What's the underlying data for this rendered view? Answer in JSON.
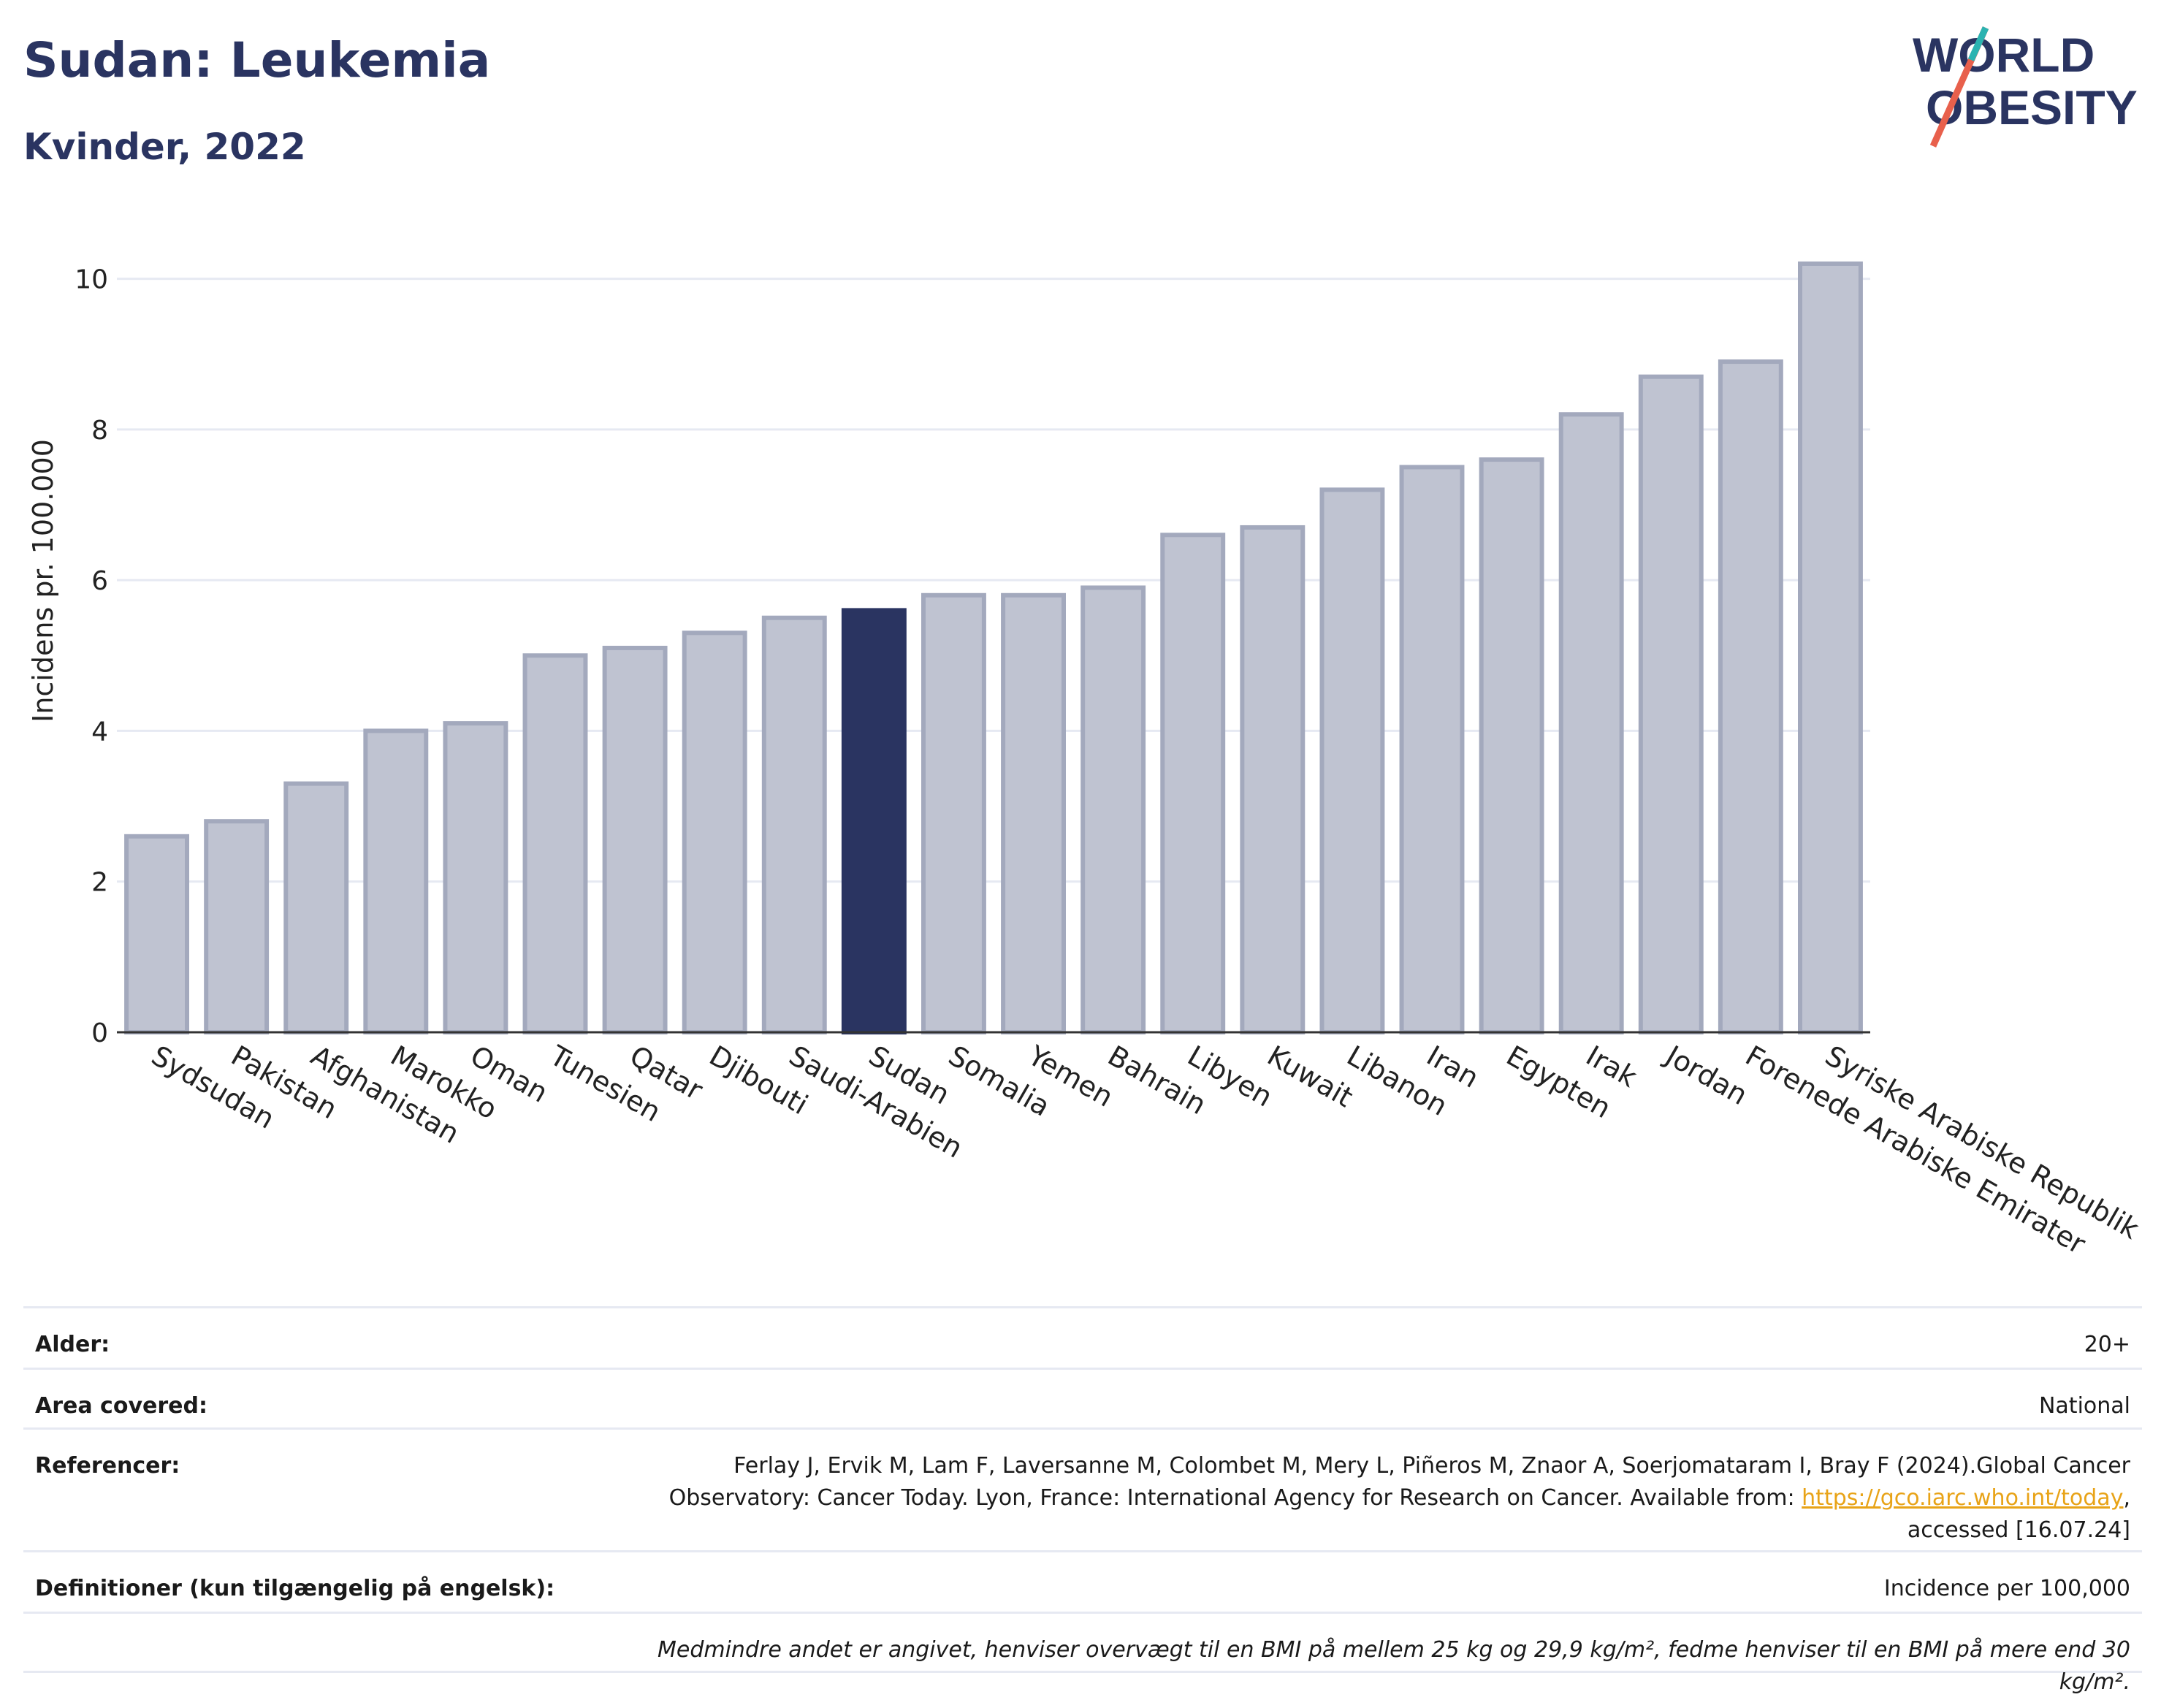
{
  "header": {
    "title": "Sudan: Leukemia",
    "subtitle": "Kvinder, 2022",
    "logo_text_1": "WORLD",
    "logo_text_2": "OBESITY"
  },
  "chart_data": {
    "type": "bar",
    "ylabel": "Incidens pr. 100.000",
    "ylim": [
      0,
      10.5
    ],
    "yticks": [
      0,
      2,
      4,
      6,
      8,
      10
    ],
    "grid": true,
    "highlight": "Sudan",
    "colors": {
      "bar": "#bfc3d1",
      "bar_border": "#a3a9bd",
      "highlight": "#2a3461",
      "grid": "#e6e9f2",
      "axis": "#333333"
    },
    "categories": [
      "Sydsudan",
      "Pakistan",
      "Afghanistan",
      "Marokko",
      "Oman",
      "Tunesien",
      "Qatar",
      "Djibouti",
      "Saudi-Arabien",
      "Sudan",
      "Somalia",
      "Yemen",
      "Bahrain",
      "Libyen",
      "Kuwait",
      "Libanon",
      "Iran",
      "Egypten",
      "Irak",
      "Jordan",
      "Forenede Arabiske Emirater",
      "Syriske Arabiske Republik"
    ],
    "values": [
      2.6,
      2.8,
      3.3,
      4.0,
      4.1,
      5.0,
      5.1,
      5.3,
      5.5,
      5.6,
      5.8,
      5.8,
      5.9,
      6.6,
      6.7,
      7.2,
      7.5,
      7.6,
      8.2,
      8.7,
      8.9,
      10.2
    ]
  },
  "info": {
    "age_label": "Alder:",
    "age_value": "20+",
    "area_label": "Area covered:",
    "area_value": "National",
    "ref_label": "Referencer:",
    "ref_text_1": "Ferlay J, Ervik M, Lam F, Laversanne M, Colombet M, Mery L, Piñeros M, Znaor A, Soerjomataram I, Bray F (2024).Global Cancer Observatory: Cancer Today. Lyon, France: International Agency for Research on Cancer. Available from: ",
    "ref_link": "https://gco.iarc.who.int/today",
    "ref_text_2": ", accessed [16.07.24]",
    "def_label": "Definitioner (kun tilgængelig på engelsk):",
    "def_value": "Incidence per 100,000",
    "footnote": "Medmindre andet er angivet, henviser overvægt til en BMI på mellem 25 kg og 29,9 kg/m², fedme henviser til en BMI på mere end 30 kg/m²."
  }
}
